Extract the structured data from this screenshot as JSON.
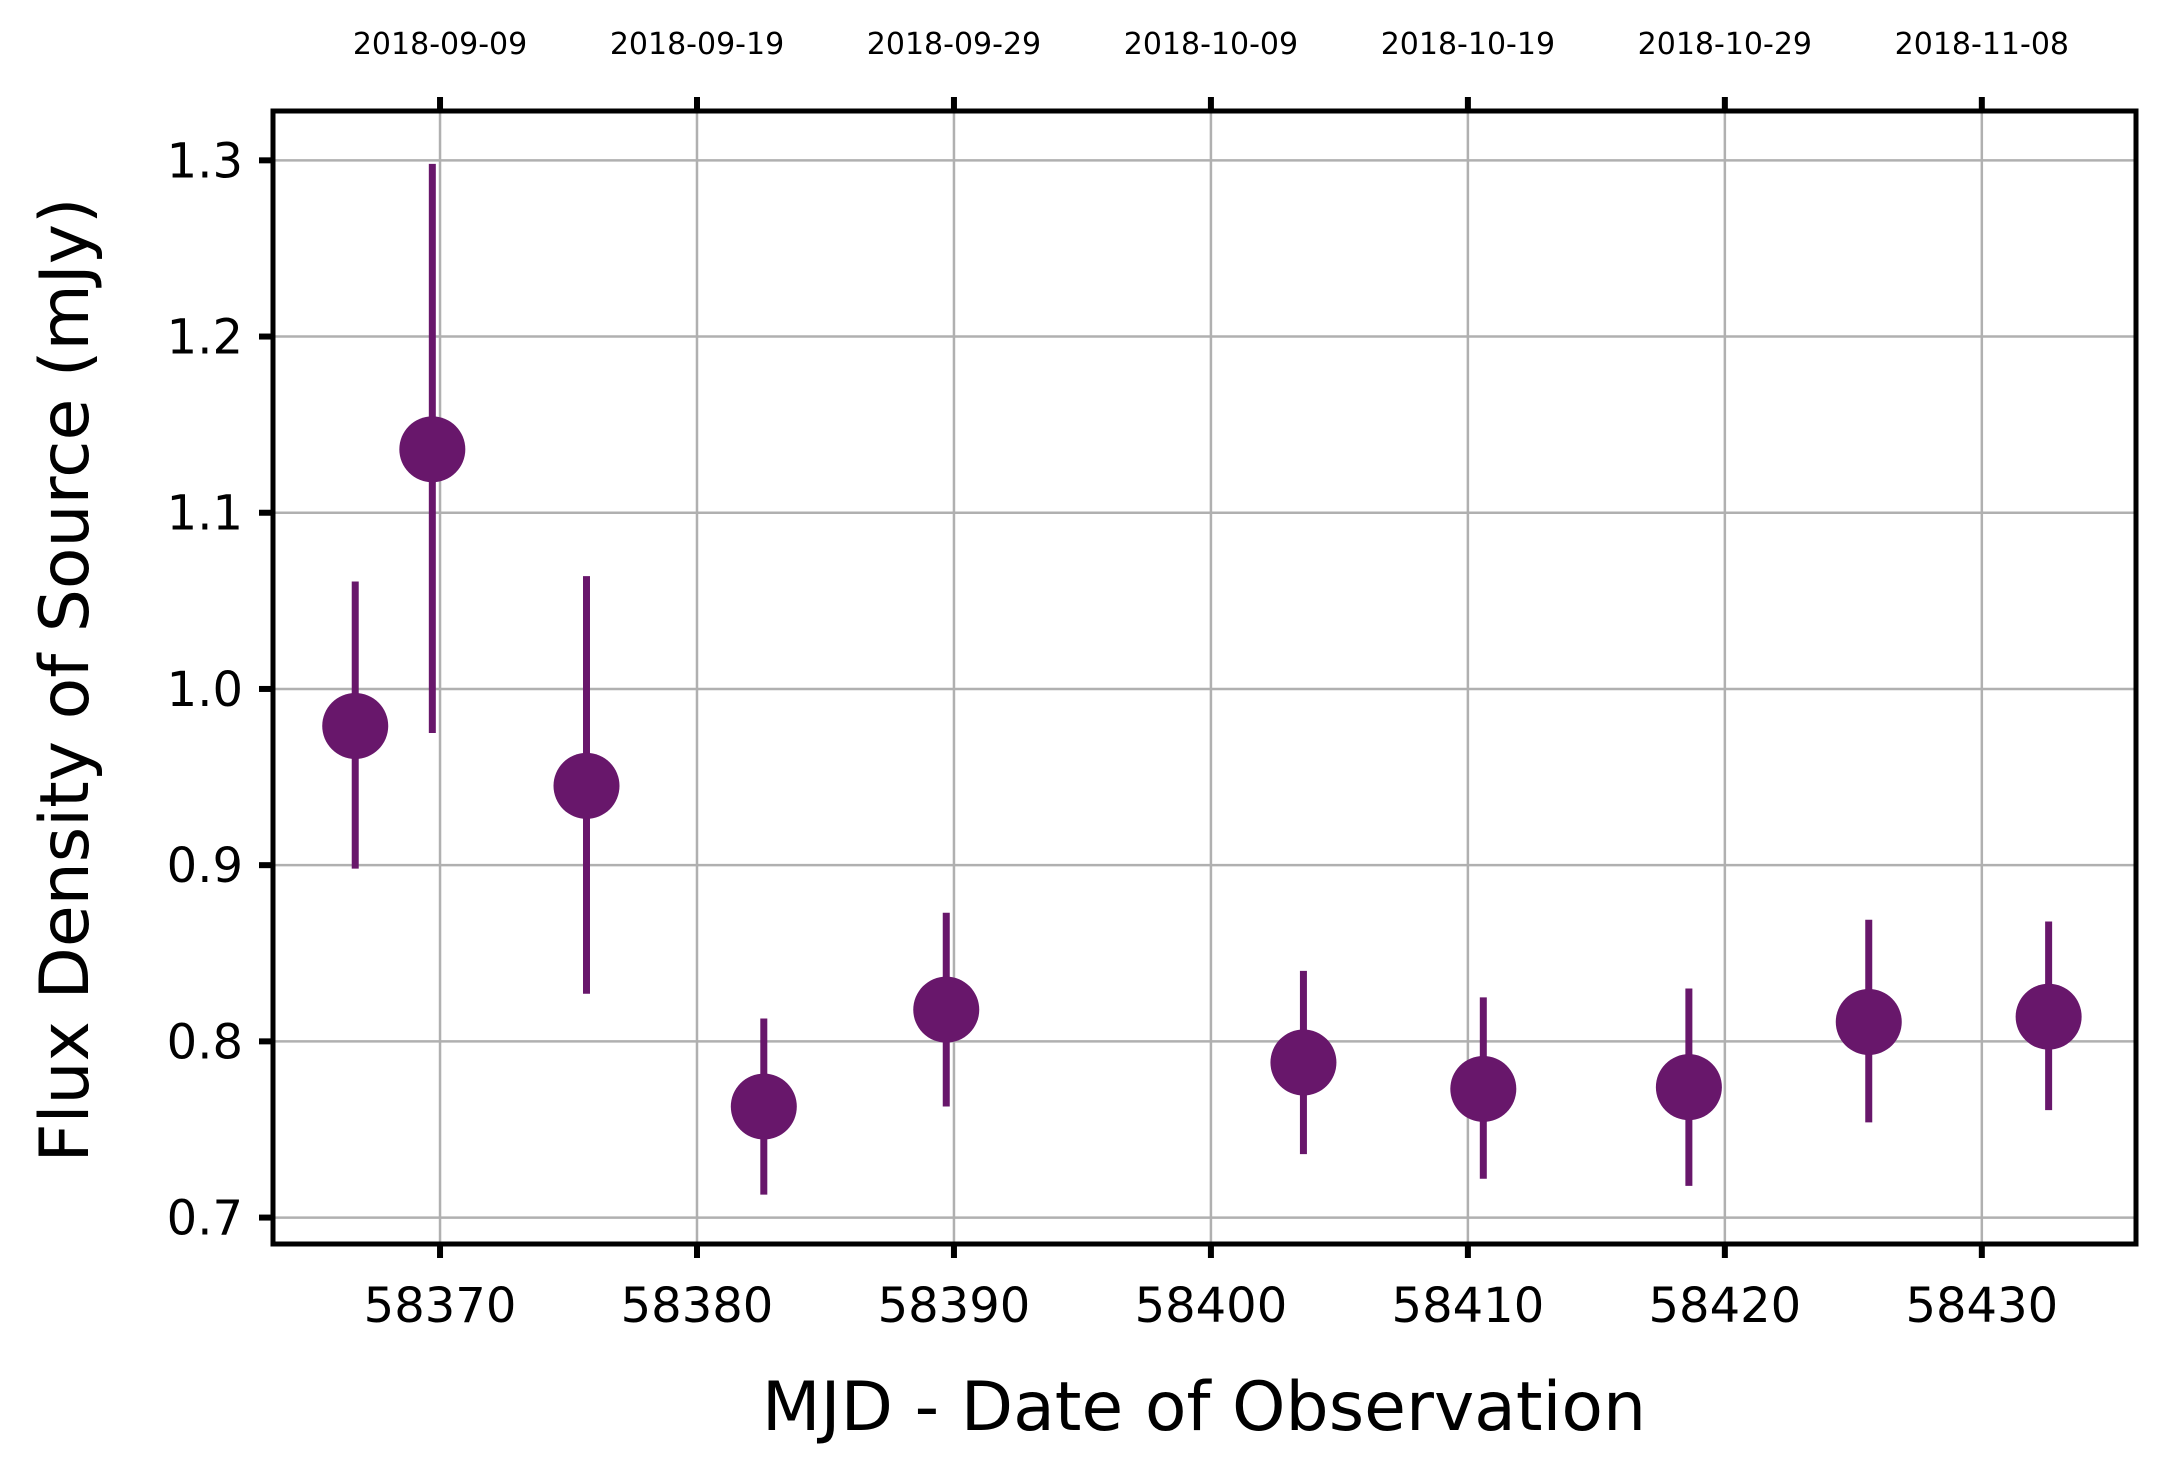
{
  "chart_data": {
    "type": "scatter",
    "xlabel": "MJD - Date of Observation",
    "ylabel": "Flux Density of Source (mJy)",
    "xlim": [
      58363.5,
      58436.0
    ],
    "ylim": [
      0.685,
      1.328
    ],
    "x_ticks": [
      58370,
      58380,
      58390,
      58400,
      58410,
      58420,
      58430
    ],
    "x_tick_labels": [
      "58370",
      "58380",
      "58390",
      "58400",
      "58410",
      "58420",
      "58430"
    ],
    "y_ticks": [
      0.7,
      0.8,
      0.9,
      1.0,
      1.1,
      1.2,
      1.3
    ],
    "y_tick_labels": [
      "0.7",
      "0.8",
      "0.9",
      "1.0",
      "1.1",
      "1.2",
      "1.3"
    ],
    "top_axis": {
      "ticks": [
        58370,
        58380,
        58390,
        58400,
        58410,
        58420,
        58430
      ],
      "labels": [
        "2018-09-09",
        "2018-09-19",
        "2018-09-29",
        "2018-10-09",
        "2018-10-19",
        "2018-10-29",
        "2018-11-08"
      ]
    },
    "grid": true,
    "marker_color": "#68176b",
    "points": [
      {
        "x": 58366.7,
        "y": 0.979,
        "yerr_low": 0.898,
        "yerr_high": 1.061
      },
      {
        "x": 58369.7,
        "y": 1.136,
        "yerr_low": 0.975,
        "yerr_high": 1.298
      },
      {
        "x": 58375.7,
        "y": 0.945,
        "yerr_low": 0.827,
        "yerr_high": 1.064
      },
      {
        "x": 58382.6,
        "y": 0.763,
        "yerr_low": 0.713,
        "yerr_high": 0.813
      },
      {
        "x": 58389.7,
        "y": 0.818,
        "yerr_low": 0.763,
        "yerr_high": 0.873
      },
      {
        "x": 58403.6,
        "y": 0.788,
        "yerr_low": 0.736,
        "yerr_high": 0.84
      },
      {
        "x": 58410.6,
        "y": 0.773,
        "yerr_low": 0.722,
        "yerr_high": 0.825
      },
      {
        "x": 58418.6,
        "y": 0.774,
        "yerr_low": 0.718,
        "yerr_high": 0.83
      },
      {
        "x": 58425.6,
        "y": 0.811,
        "yerr_low": 0.754,
        "yerr_high": 0.869
      },
      {
        "x": 58432.6,
        "y": 0.814,
        "yerr_low": 0.761,
        "yerr_high": 0.868
      }
    ]
  }
}
